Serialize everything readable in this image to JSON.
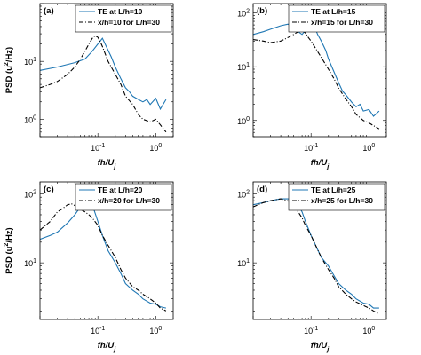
{
  "colors": {
    "te": "#1f77b4",
    "ref": "#000000"
  },
  "chart_data": [
    {
      "type": "line",
      "panel_label": "(a)",
      "xscale": "log",
      "yscale": "log",
      "xlim": [
        0.01,
        2
      ],
      "ylim": [
        0.5,
        100
      ],
      "xlabel": "fh/U",
      "xlabel_sub": "j",
      "ylabel": "PSD (u",
      "ylabel_sup": "2",
      "ylabel_tail": "/Hz)",
      "x_ticks": [
        {
          "value": 0.1,
          "base": "10",
          "exp": "-1"
        },
        {
          "value": 1,
          "base": "10",
          "exp": "0"
        }
      ],
      "y_ticks": [
        {
          "value": 1,
          "base": "10",
          "exp": "0"
        },
        {
          "value": 10,
          "base": "10",
          "exp": "1"
        }
      ],
      "legend": "top-right",
      "series": [
        {
          "name": "TE at L/h=10",
          "style": "solid",
          "color": "#1f77b4",
          "x": [
            0.01,
            0.02,
            0.04,
            0.06,
            0.08,
            0.1,
            0.12,
            0.14,
            0.17,
            0.2,
            0.25,
            0.3,
            0.35,
            0.4,
            0.5,
            0.6,
            0.7,
            0.8,
            1.0,
            1.2,
            1.5
          ],
          "y": [
            7,
            8,
            9.5,
            11,
            15,
            20,
            25,
            18,
            12,
            8,
            5,
            3.5,
            3,
            2.5,
            2.2,
            2,
            2.2,
            1.8,
            2.3,
            1.5,
            2.2
          ]
        },
        {
          "name": "x/h=10 for L/h=30",
          "style": "dashdot",
          "color": "#000000",
          "x": [
            0.01,
            0.015,
            0.02,
            0.03,
            0.04,
            0.05,
            0.06,
            0.07,
            0.08,
            0.09,
            0.1,
            0.11,
            0.12,
            0.15,
            0.2,
            0.25,
            0.3,
            0.4,
            0.5,
            0.6,
            0.8,
            1.0,
            1.2,
            1.5
          ],
          "y": [
            3.5,
            4,
            4.5,
            6,
            8,
            11,
            15,
            20,
            25,
            28,
            26,
            22,
            18,
            10,
            6,
            4,
            2.5,
            1.8,
            1.2,
            1,
            0.9,
            1,
            0.8,
            0.6
          ]
        }
      ]
    },
    {
      "type": "line",
      "panel_label": "(b)",
      "xscale": "log",
      "yscale": "log",
      "xlim": [
        0.01,
        2
      ],
      "ylim": [
        0.5,
        150
      ],
      "xlabel": "fh/U",
      "xlabel_sub": "j",
      "ylabel": "",
      "ylabel_sup": "",
      "ylabel_tail": "",
      "x_ticks": [
        {
          "value": 0.1,
          "base": "10",
          "exp": "-1"
        },
        {
          "value": 1,
          "base": "10",
          "exp": "0"
        }
      ],
      "y_ticks": [
        {
          "value": 1,
          "base": "10",
          "exp": "0"
        },
        {
          "value": 10,
          "base": "10",
          "exp": "1"
        },
        {
          "value": 100,
          "base": "10",
          "exp": "2"
        }
      ],
      "legend": "top-right",
      "series": [
        {
          "name": "TE at L/h=15",
          "style": "solid",
          "color": "#1f77b4",
          "x": [
            0.01,
            0.015,
            0.02,
            0.03,
            0.04,
            0.05,
            0.06,
            0.07,
            0.08,
            0.09,
            0.1,
            0.11,
            0.12,
            0.13,
            0.15,
            0.18,
            0.2,
            0.25,
            0.3,
            0.35,
            0.4,
            0.5,
            0.6,
            0.7,
            0.8,
            1.0,
            1.2,
            1.5
          ],
          "y": [
            40,
            45,
            50,
            58,
            62,
            55,
            45,
            40,
            48,
            55,
            65,
            60,
            50,
            40,
            30,
            20,
            14,
            8,
            5,
            3.5,
            3,
            2.2,
            1.8,
            2,
            1.5,
            1.6,
            1.2,
            1.5
          ]
        },
        {
          "name": "x/h=15 for L/h=30",
          "style": "dashdot",
          "color": "#000000",
          "x": [
            0.01,
            0.015,
            0.02,
            0.03,
            0.04,
            0.05,
            0.06,
            0.07,
            0.08,
            0.09,
            0.1,
            0.12,
            0.15,
            0.2,
            0.25,
            0.3,
            0.4,
            0.5,
            0.6,
            0.8,
            1.0,
            1.2,
            1.5
          ],
          "y": [
            32,
            30,
            28,
            30,
            35,
            40,
            45,
            50,
            42,
            35,
            30,
            22,
            15,
            9,
            6,
            4,
            2.5,
            1.8,
            1.3,
            1,
            0.9,
            0.8,
            0.7
          ]
        }
      ]
    },
    {
      "type": "line",
      "panel_label": "(c)",
      "xscale": "log",
      "yscale": "log",
      "xlim": [
        0.01,
        2
      ],
      "ylim": [
        1.5,
        150
      ],
      "xlabel": "fh/U",
      "xlabel_sub": "j",
      "ylabel": "PSD (u",
      "ylabel_sup": "2",
      "ylabel_tail": "/Hz)",
      "x_ticks": [
        {
          "value": 0.1,
          "base": "10",
          "exp": "-1"
        },
        {
          "value": 1,
          "base": "10",
          "exp": "0"
        }
      ],
      "y_ticks": [
        {
          "value": 10,
          "base": "10",
          "exp": "1"
        },
        {
          "value": 100,
          "base": "10",
          "exp": "2"
        }
      ],
      "legend": "top-right",
      "series": [
        {
          "name": "TE at L/h=20",
          "style": "solid",
          "color": "#1f77b4",
          "x": [
            0.01,
            0.015,
            0.02,
            0.03,
            0.04,
            0.05,
            0.06,
            0.07,
            0.08,
            0.1,
            0.12,
            0.15,
            0.2,
            0.25,
            0.3,
            0.4,
            0.5,
            0.6,
            0.8,
            1.0,
            1.2,
            1.5
          ],
          "y": [
            22,
            25,
            28,
            38,
            50,
            65,
            75,
            80,
            70,
            40,
            25,
            15,
            10,
            7,
            5,
            4,
            3.5,
            3,
            2.6,
            2.5,
            2.3,
            2.2
          ]
        },
        {
          "name": "x/h=20 for L/h=30",
          "style": "dashdot",
          "color": "#000000",
          "x": [
            0.01,
            0.015,
            0.02,
            0.025,
            0.03,
            0.035,
            0.04,
            0.05,
            0.06,
            0.07,
            0.08,
            0.1,
            0.12,
            0.15,
            0.2,
            0.25,
            0.3,
            0.4,
            0.5,
            0.6,
            0.8,
            1.0,
            1.2,
            1.5
          ],
          "y": [
            30,
            40,
            55,
            62,
            70,
            72,
            68,
            60,
            55,
            50,
            45,
            35,
            25,
            18,
            12,
            8,
            6,
            4.5,
            4,
            3.5,
            3,
            2.6,
            2.2,
            2
          ]
        }
      ]
    },
    {
      "type": "line",
      "panel_label": "(d)",
      "xscale": "log",
      "yscale": "log",
      "xlim": [
        0.01,
        2
      ],
      "ylim": [
        1.5,
        150
      ],
      "xlabel": "fh/U",
      "xlabel_sub": "j",
      "ylabel": "",
      "ylabel_sup": "",
      "ylabel_tail": "",
      "x_ticks": [
        {
          "value": 0.1,
          "base": "10",
          "exp": "-1"
        },
        {
          "value": 1,
          "base": "10",
          "exp": "0"
        }
      ],
      "y_ticks": [
        {
          "value": 10,
          "base": "10",
          "exp": "1"
        },
        {
          "value": 100,
          "base": "10",
          "exp": "2"
        }
      ],
      "legend": "top-right",
      "series": [
        {
          "name": "TE at L/h=25",
          "style": "solid",
          "color": "#1f77b4",
          "x": [
            0.01,
            0.015,
            0.02,
            0.03,
            0.04,
            0.05,
            0.06,
            0.07,
            0.08,
            0.1,
            0.12,
            0.15,
            0.2,
            0.25,
            0.3,
            0.4,
            0.5,
            0.6,
            0.8,
            1.0,
            1.2,
            1.5
          ],
          "y": [
            70,
            75,
            80,
            85,
            85,
            82,
            70,
            55,
            40,
            25,
            18,
            12,
            9,
            6.5,
            5,
            4,
            3.5,
            3,
            2.6,
            2.5,
            2.2,
            2.2
          ]
        },
        {
          "name": "x/h=25 for L/h=30",
          "style": "dashdot",
          "color": "#000000",
          "x": [
            0.01,
            0.015,
            0.02,
            0.03,
            0.04,
            0.05,
            0.06,
            0.07,
            0.08,
            0.1,
            0.12,
            0.15,
            0.2,
            0.25,
            0.3,
            0.4,
            0.5,
            0.6,
            0.8,
            1.0,
            1.2,
            1.5
          ],
          "y": [
            65,
            75,
            80,
            85,
            80,
            70,
            55,
            45,
            35,
            25,
            18,
            12,
            8,
            6,
            4.5,
            3.5,
            3,
            2.7,
            2.4,
            2.2,
            2,
            1.8
          ]
        }
      ]
    }
  ]
}
